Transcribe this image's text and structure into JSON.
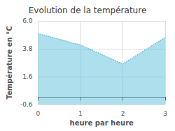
{
  "chart_data": {
    "type": "area",
    "title": "Evolution de la température",
    "xlabel": "heure par heure",
    "ylabel": "Température en °C",
    "x": [
      0,
      1,
      2,
      3
    ],
    "values": [
      5.0,
      4.1,
      2.6,
      4.7
    ],
    "xlim": [
      0,
      3
    ],
    "xticks": [
      0,
      1,
      2,
      3
    ],
    "ylim": [
      -0.6,
      6.0
    ],
    "yticks": [
      -0.6,
      1.6,
      3.8,
      {
        "value": 6.0,
        "label": "6.0"
      }
    ],
    "color": "#5bbfdb",
    "line_style": "dotted",
    "grid": true
  }
}
